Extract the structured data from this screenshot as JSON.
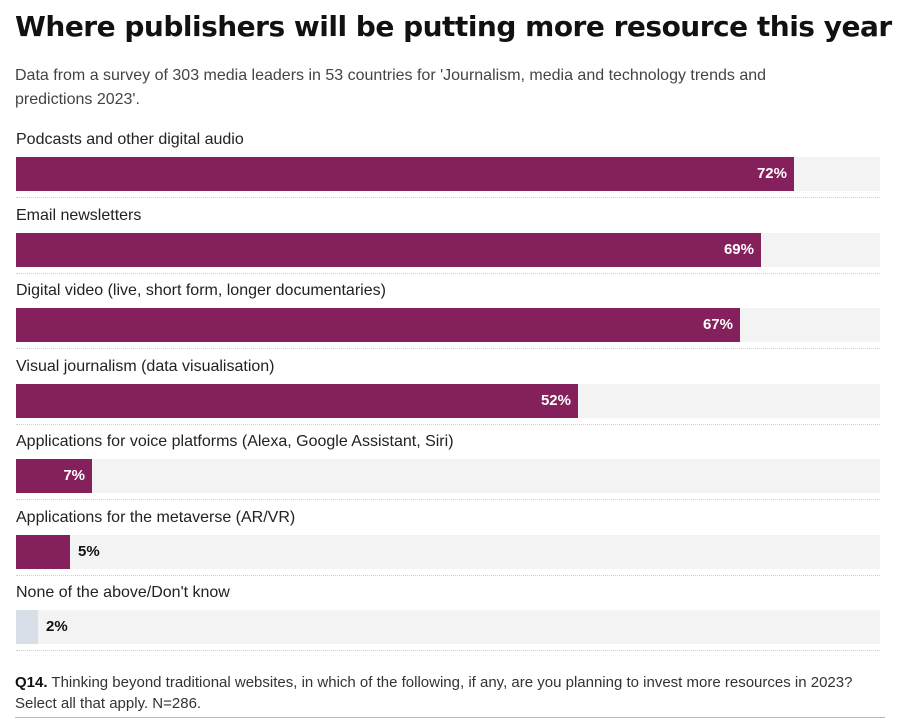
{
  "chart_data": {
    "type": "bar",
    "orientation": "horizontal",
    "title": "Where publishers will be putting more resource this year",
    "subtitle": "Data from a survey of 303 media leaders in 53 countries for 'Journalism, media and technology trends and predictions 2023'.",
    "categories": [
      "Podcasts and other digital audio",
      "Email newsletters",
      "Digital video (live, short form, longer documentaries)",
      "Visual journalism (data visualisation)",
      "Applications for voice platforms (Alexa, Google Assistant, Siri)",
      "Applications for the metaverse (AR/VR)",
      "None of the above/Don't know"
    ],
    "values": [
      72,
      69,
      67,
      52,
      7,
      5,
      2
    ],
    "value_labels": [
      "72%",
      "69%",
      "67%",
      "52%",
      "7%",
      "5%",
      "2%"
    ],
    "xlim": [
      0,
      80
    ],
    "bar_color": "#84205c",
    "highlight_color_none": "#d9dfe8",
    "track_color": "#f3f3f4"
  },
  "footnote": {
    "code": "Q14.",
    "text": " Thinking beyond traditional websites, in which of the following, if any, are you planning to invest more resources in 2023? Select all that apply. N=286."
  }
}
